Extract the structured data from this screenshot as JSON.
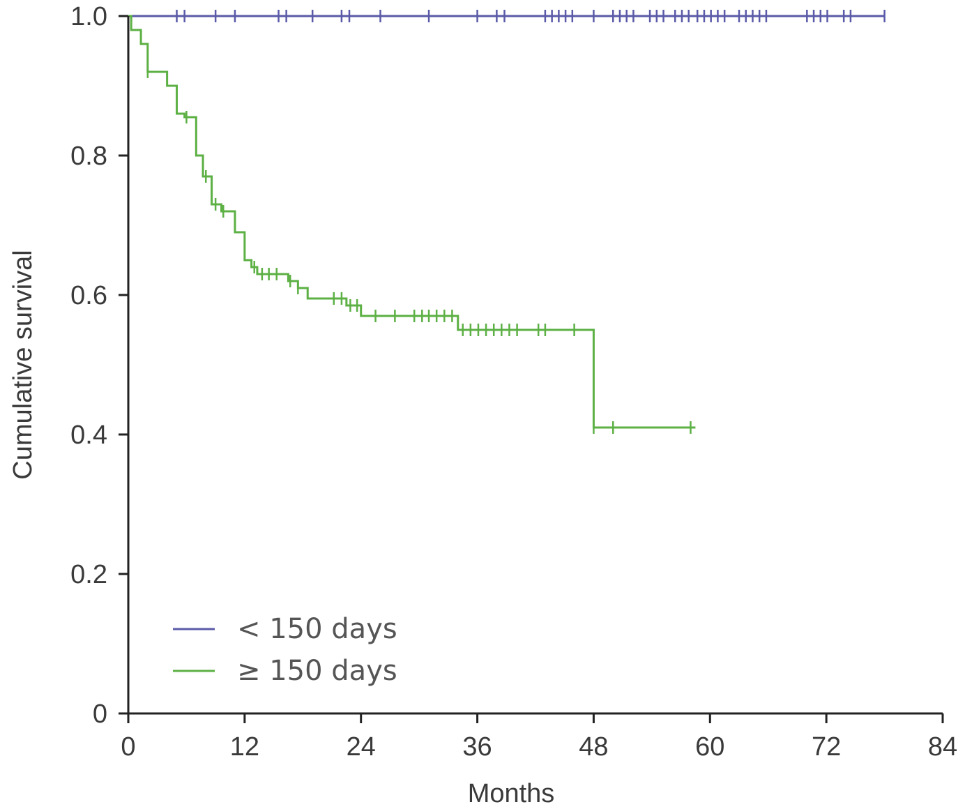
{
  "chart_data": {
    "type": "line",
    "subtype": "kaplan-meier",
    "title": "",
    "xlabel": "Months",
    "ylabel": "Cumulative survival",
    "xlim": [
      0,
      84
    ],
    "ylim": [
      0,
      1
    ],
    "x_ticks": [
      0,
      12,
      24,
      36,
      48,
      60,
      72,
      84
    ],
    "x_tick_labels": [
      "0",
      "12",
      "24",
      "36",
      "48",
      "60",
      "72",
      "84"
    ],
    "y_ticks": [
      0,
      0.2,
      0.4,
      0.6,
      0.8,
      1.0
    ],
    "y_tick_labels": [
      "0",
      "0.2",
      "0.4",
      "0.6",
      "0.8",
      "1.0"
    ],
    "grid": false,
    "legend_position": "bottom-left",
    "series": [
      {
        "name": "< 150 days",
        "color": "#5a5aa8",
        "steps": [
          [
            0,
            1.0
          ],
          [
            78,
            1.0
          ]
        ],
        "censored": [
          [
            5,
            1.0
          ],
          [
            5.8,
            1.0
          ],
          [
            9,
            1.0
          ],
          [
            11,
            1.0
          ],
          [
            15.5,
            1.0
          ],
          [
            16.3,
            1.0
          ],
          [
            19,
            1.0
          ],
          [
            22,
            1.0
          ],
          [
            22.8,
            1.0
          ],
          [
            26,
            1.0
          ],
          [
            31,
            1.0
          ],
          [
            36,
            1.0
          ],
          [
            38,
            1.0
          ],
          [
            38.8,
            1.0
          ],
          [
            43,
            1.0
          ],
          [
            43.7,
            1.0
          ],
          [
            44.4,
            1.0
          ],
          [
            45.1,
            1.0
          ],
          [
            45.8,
            1.0
          ],
          [
            48,
            1.0
          ],
          [
            50,
            1.0
          ],
          [
            50.7,
            1.0
          ],
          [
            51.4,
            1.0
          ],
          [
            52.1,
            1.0
          ],
          [
            53.8,
            1.0
          ],
          [
            54.5,
            1.0
          ],
          [
            55.2,
            1.0
          ],
          [
            56.4,
            1.0
          ],
          [
            57.1,
            1.0
          ],
          [
            57.8,
            1.0
          ],
          [
            58.7,
            1.0
          ],
          [
            59.4,
            1.0
          ],
          [
            60.1,
            1.0
          ],
          [
            60.8,
            1.0
          ],
          [
            61.5,
            1.0
          ],
          [
            63,
            1.0
          ],
          [
            63.7,
            1.0
          ],
          [
            64.4,
            1.0
          ],
          [
            65.1,
            1.0
          ],
          [
            65.8,
            1.0
          ],
          [
            70,
            1.0
          ],
          [
            70.7,
            1.0
          ],
          [
            71.4,
            1.0
          ],
          [
            72.1,
            1.0
          ],
          [
            73.8,
            1.0
          ],
          [
            74.5,
            1.0
          ],
          [
            78,
            1.0
          ]
        ]
      },
      {
        "name": "≥ 150 days",
        "color": "#5cb044",
        "steps": [
          [
            0,
            1.0
          ],
          [
            0.3,
            0.98
          ],
          [
            1.3,
            0.96
          ],
          [
            2,
            0.92
          ],
          [
            4,
            0.9
          ],
          [
            5,
            0.86
          ],
          [
            5.8,
            0.855
          ],
          [
            7,
            0.8
          ],
          [
            7.7,
            0.77
          ],
          [
            8.6,
            0.73
          ],
          [
            9.6,
            0.72
          ],
          [
            11,
            0.69
          ],
          [
            12,
            0.65
          ],
          [
            12.7,
            0.64
          ],
          [
            13.3,
            0.63
          ],
          [
            16.5,
            0.62
          ],
          [
            17.5,
            0.61
          ],
          [
            18.5,
            0.595
          ],
          [
            22.5,
            0.585
          ],
          [
            24,
            0.57
          ],
          [
            34,
            0.55
          ],
          [
            48,
            0.41
          ],
          [
            58.5,
            0.41
          ]
        ],
        "censored": [
          [
            2,
            0.92
          ],
          [
            6,
            0.855
          ],
          [
            8,
            0.77
          ],
          [
            9,
            0.73
          ],
          [
            9.8,
            0.72
          ],
          [
            13,
            0.64
          ],
          [
            13.8,
            0.63
          ],
          [
            14.5,
            0.63
          ],
          [
            15.3,
            0.63
          ],
          [
            16.7,
            0.62
          ],
          [
            17.5,
            0.61
          ],
          [
            21.2,
            0.595
          ],
          [
            22,
            0.595
          ],
          [
            22.9,
            0.585
          ],
          [
            23.6,
            0.585
          ],
          [
            25.5,
            0.57
          ],
          [
            27.5,
            0.57
          ],
          [
            29.5,
            0.57
          ],
          [
            30.3,
            0.57
          ],
          [
            31,
            0.57
          ],
          [
            31.8,
            0.57
          ],
          [
            32.6,
            0.57
          ],
          [
            33.4,
            0.57
          ],
          [
            34.5,
            0.55
          ],
          [
            35.3,
            0.55
          ],
          [
            36.1,
            0.55
          ],
          [
            36.9,
            0.55
          ],
          [
            37.7,
            0.55
          ],
          [
            38.5,
            0.55
          ],
          [
            39.3,
            0.55
          ],
          [
            40.1,
            0.55
          ],
          [
            42.3,
            0.55
          ],
          [
            43,
            0.55
          ],
          [
            46,
            0.55
          ],
          [
            48,
            0.41
          ],
          [
            50,
            0.41
          ],
          [
            58,
            0.41
          ]
        ]
      }
    ]
  }
}
